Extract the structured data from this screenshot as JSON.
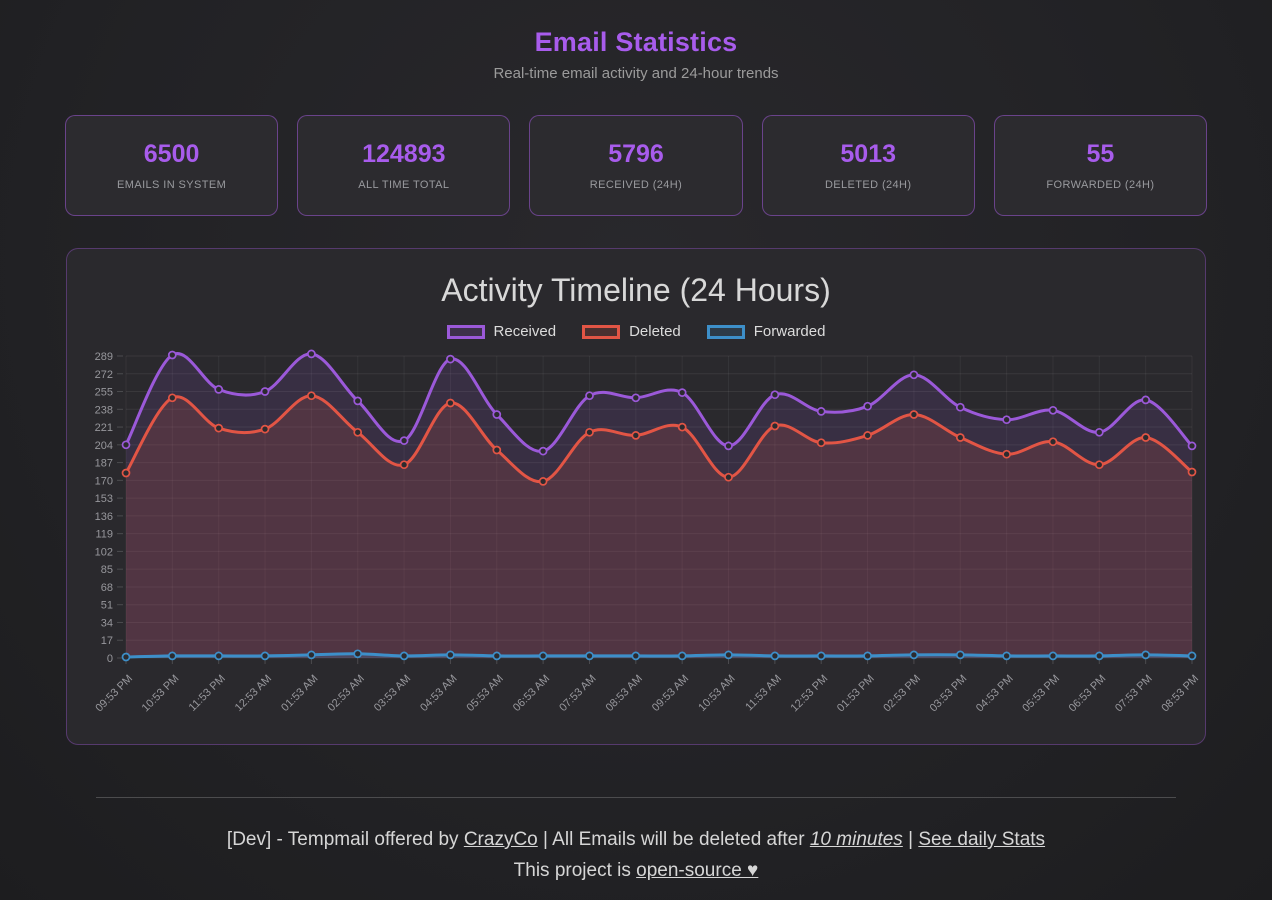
{
  "theme": {
    "accent": "#a85cec",
    "received_color": "#9b59d9",
    "deleted_color": "#e25545",
    "forwarded_color": "#3d8fc9"
  },
  "header": {
    "title": "Email Statistics",
    "subtitle": "Real-time email activity and 24-hour trends"
  },
  "stats": [
    {
      "value": "6500",
      "label": "EMAILS IN SYSTEM"
    },
    {
      "value": "124893",
      "label": "ALL TIME TOTAL"
    },
    {
      "value": "5796",
      "label": "RECEIVED (24H)"
    },
    {
      "value": "5013",
      "label": "DELETED (24H)"
    },
    {
      "value": "55",
      "label": "FORWARDED (24H)"
    }
  ],
  "chart_data": {
    "type": "line",
    "title": "Activity Timeline (24 Hours)",
    "x": [
      "09:53 PM",
      "10:53 PM",
      "11:53 PM",
      "12:53 AM",
      "01:53 AM",
      "02:53 AM",
      "03:53 AM",
      "04:53 AM",
      "05:53 AM",
      "06:53 AM",
      "07:53 AM",
      "08:53 AM",
      "09:53 AM",
      "10:53 AM",
      "11:53 AM",
      "12:53 PM",
      "01:53 PM",
      "02:53 PM",
      "03:53 PM",
      "04:53 PM",
      "05:53 PM",
      "06:53 PM",
      "07:53 PM",
      "08:53 PM"
    ],
    "series": [
      {
        "name": "Received",
        "color": "#9b59d9",
        "values": [
          204,
          290,
          257,
          255,
          291,
          246,
          208,
          286,
          233,
          198,
          251,
          249,
          254,
          203,
          252,
          236,
          241,
          271,
          240,
          228,
          237,
          216,
          247,
          203
        ]
      },
      {
        "name": "Deleted",
        "color": "#e25545",
        "values": [
          177,
          249,
          220,
          219,
          251,
          216,
          185,
          244,
          199,
          169,
          216,
          213,
          221,
          173,
          222,
          206,
          213,
          233,
          211,
          195,
          207,
          185,
          211,
          178
        ]
      },
      {
        "name": "Forwarded",
        "color": "#3d8fc9",
        "values": [
          1,
          2,
          2,
          2,
          3,
          4,
          2,
          3,
          2,
          2,
          2,
          2,
          2,
          3,
          2,
          2,
          2,
          3,
          3,
          2,
          2,
          2,
          3,
          2
        ]
      }
    ],
    "ylim": [
      0,
      289
    ],
    "ytick_step": 17,
    "grid": true,
    "legend_position": "top",
    "xlabel": "",
    "ylabel": ""
  },
  "footer": {
    "line1_prefix": "[Dev] - Tempmail offered by ",
    "crazyco_link": "CrazyCo",
    "line1_mid": " | All Emails will be deleted after ",
    "delete_after": "10 minutes",
    "line1_sep": " | ",
    "daily_stats_link": "See daily Stats",
    "line2_prefix": "This project is ",
    "open_source_link": "open-source ♥"
  }
}
